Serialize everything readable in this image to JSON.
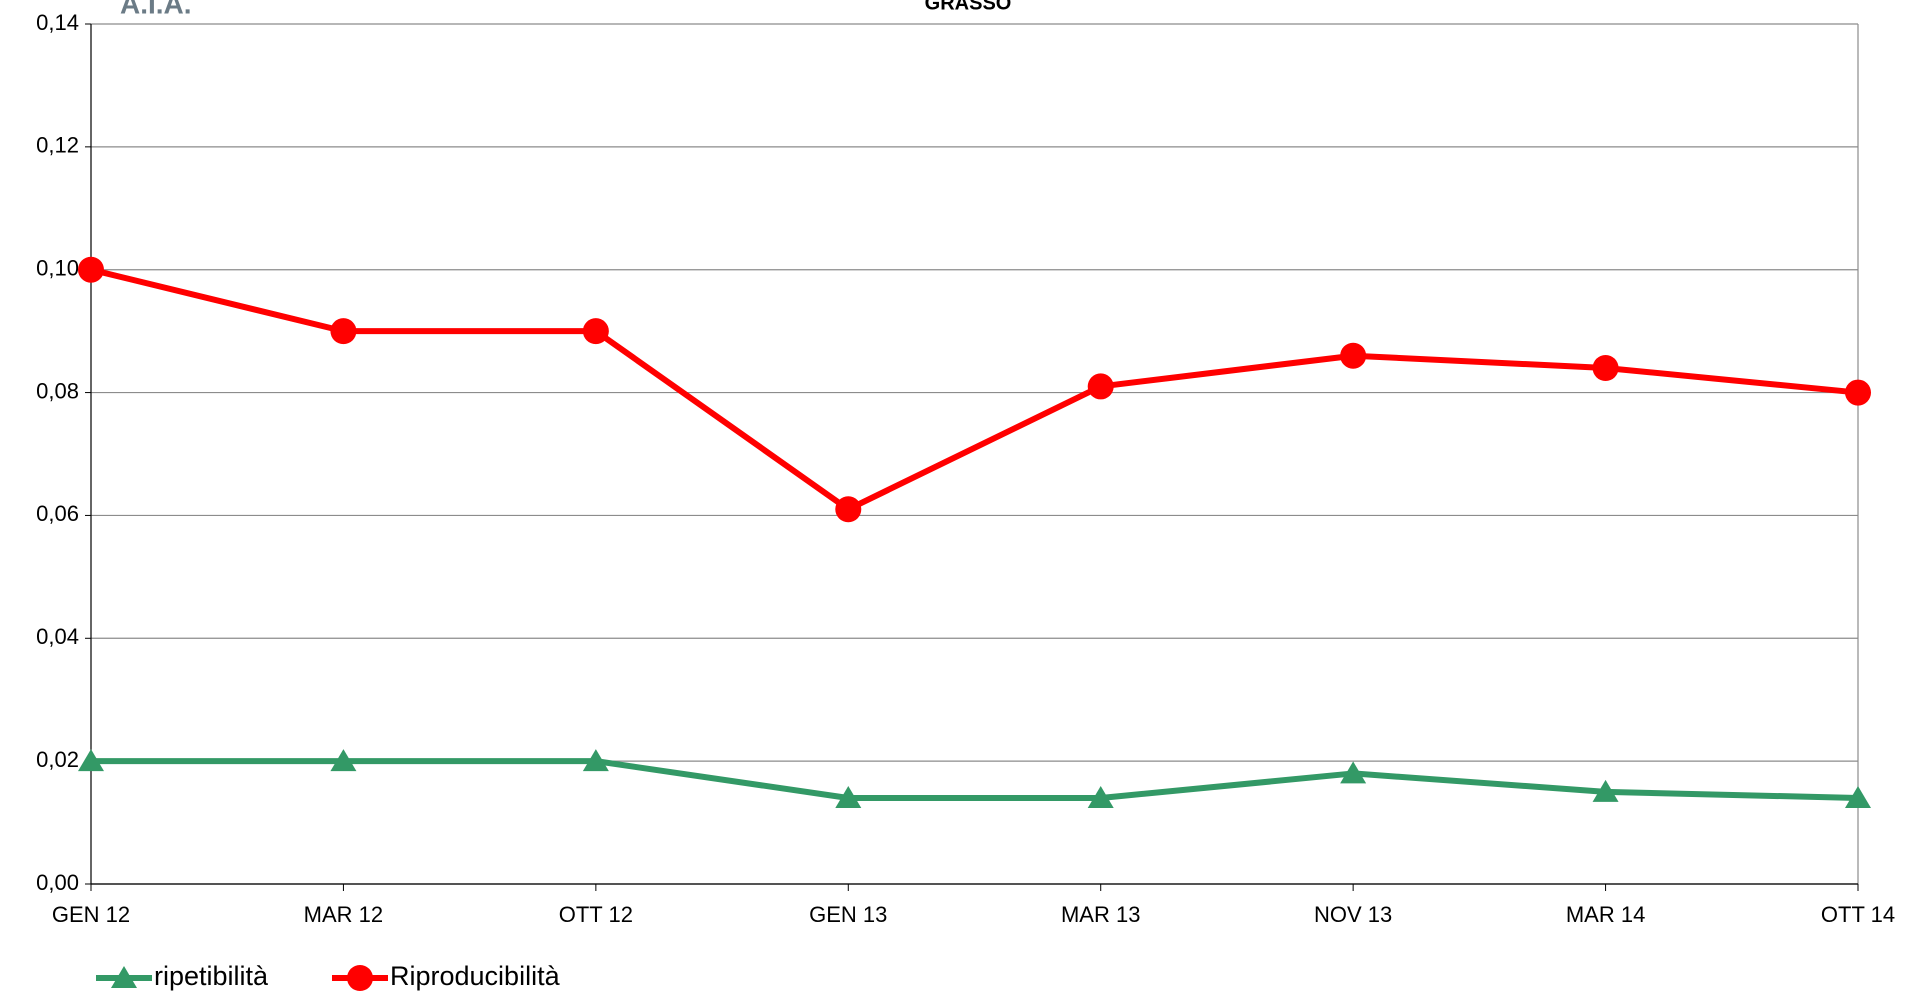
{
  "chart_data": {
    "type": "line",
    "title": "GRASSO",
    "logo": "A.I.A.",
    "categories": [
      "GEN 12",
      "MAR 12",
      "OTT 12",
      "GEN 13",
      "MAR 13",
      "NOV 13",
      "MAR 14",
      "OTT 14"
    ],
    "series": [
      {
        "name": "ripetibilità",
        "color": "#339966",
        "marker": "triangle",
        "values": [
          0.02,
          0.02,
          0.02,
          0.014,
          0.014,
          0.018,
          0.015,
          0.014
        ]
      },
      {
        "name": "Riproducibilità",
        "color": "#ff0000",
        "marker": "circle",
        "values": [
          0.1,
          0.09,
          0.09,
          0.061,
          0.081,
          0.086,
          0.084,
          0.08
        ]
      }
    ],
    "ylim": [
      0,
      0.14
    ],
    "yticks": [
      {
        "value": 0,
        "label": "0,00"
      },
      {
        "value": 0.02,
        "label": "0,02"
      },
      {
        "value": 0.04,
        "label": "0,04"
      },
      {
        "value": 0.06,
        "label": "0,06"
      },
      {
        "value": 0.08,
        "label": "0,08"
      },
      {
        "value": 0.1,
        "label": "0,10"
      },
      {
        "value": 0.12,
        "label": "0,12"
      },
      {
        "value": 0.14,
        "label": "0,14"
      }
    ],
    "grid": true,
    "legend": "bottom-left"
  }
}
